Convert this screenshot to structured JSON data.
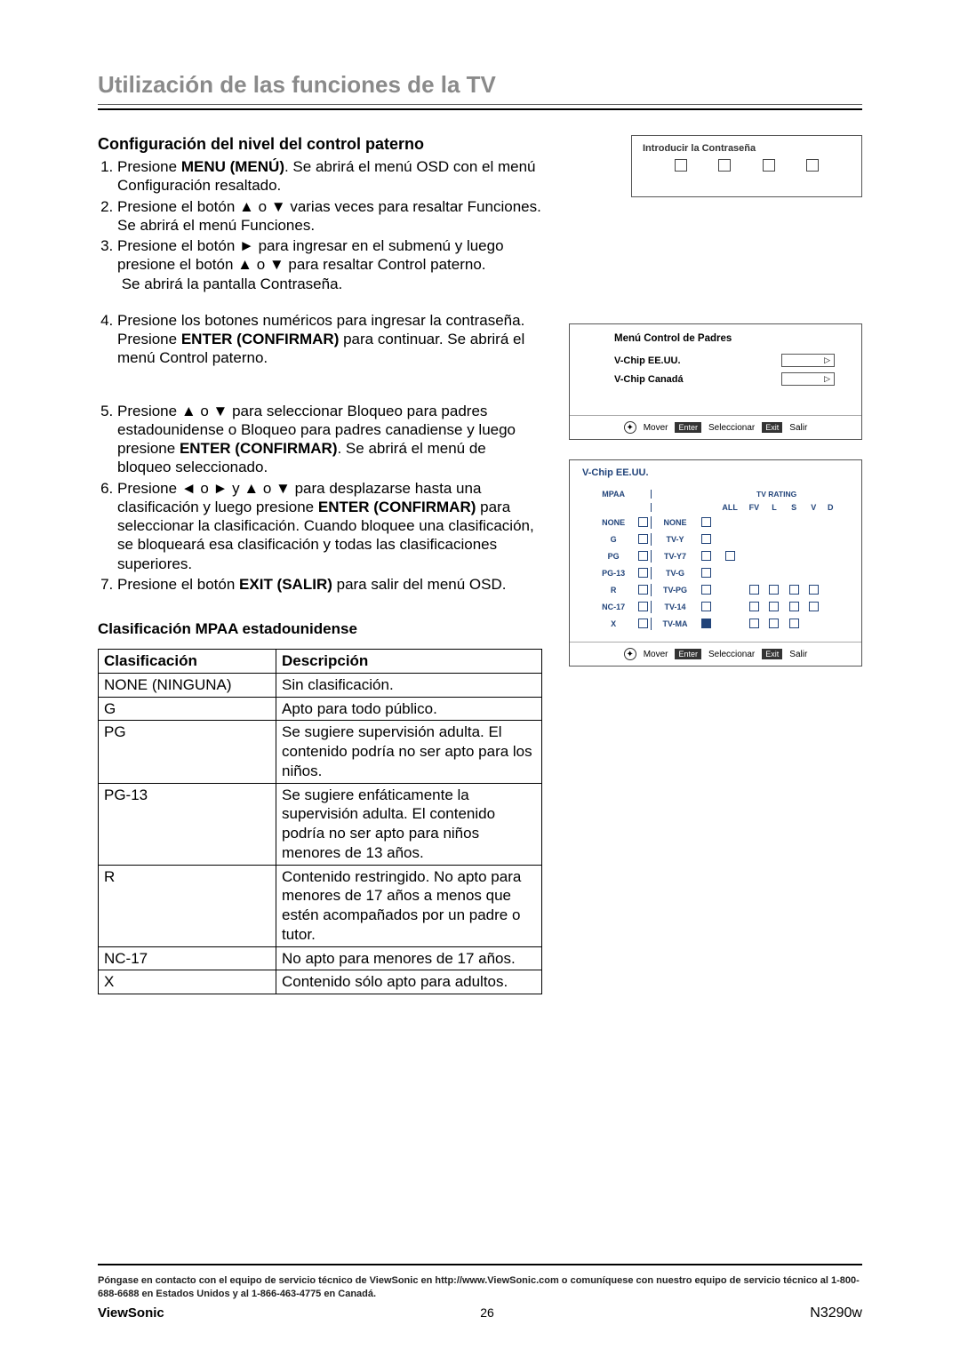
{
  "page_title": "Utilización de las funciones de la TV",
  "section1_heading": "Configuración del nivel del control paterno",
  "steps_group1": [
    "Presione <b>MENU (MENÚ)</b>. Se abrirá el menú OSD con el menú Configuración resaltado.",
    "Presione el botón ▲ o ▼ varias veces para resaltar Funciones. Se abrirá el menú Funciones.",
    "Presione el botón ► para ingresar en el submenú y luego presione el botón ▲ o ▼ para resaltar Control paterno.<br>&nbsp;Se abrirá la pantalla Contraseña."
  ],
  "steps_group2": [
    "Presione los botones numéricos para ingresar la contraseña. Presione <b>ENTER (CONFIRMAR)</b> para continuar. Se abrirá el menú Control paterno."
  ],
  "steps_group3": [
    "Presione ▲ o ▼ para seleccionar Bloqueo para padres estadounidense o Bloqueo para padres canadiense y luego presione <b>ENTER (CONFIRMAR)</b>. Se abrirá el menú de bloqueo seleccionado.",
    "Presione ◄ o ► y ▲ o ▼ para desplazarse hasta una clasificación y luego presione <b>ENTER (CONFIRMAR)</b> para seleccionar la clasificación. Cuando bloquee una clasificación, se bloqueará esa clasificación y todas las clasificaciones superiores.",
    "Presione el botón <b>EXIT (SALIR)</b> para salir del menú OSD."
  ],
  "password_panel": {
    "title": "Introducir la Contraseña"
  },
  "parent_panel": {
    "title": "Menú Control de Padres",
    "row1": "V-Chip EE.UU.",
    "row2": "V-Chip Canadá",
    "foot_mover": "Mover",
    "foot_enter": "Enter",
    "foot_select": "Seleccionar",
    "foot_exit": "Exit",
    "foot_salir": "Salir"
  },
  "vchip_panel": {
    "title": "V-Chip EE.UU.",
    "col_mpaa": "MPAA",
    "col_tvrating": "TV RATING",
    "tv_cols": [
      "ALL",
      "FV",
      "L",
      "S",
      "V",
      "D"
    ],
    "mpaa_rows": [
      "NONE",
      "G",
      "PG",
      "PG-13",
      "R",
      "NC-17",
      "X"
    ],
    "tv_rows": [
      "NONE",
      "TV-Y",
      "TV-Y7",
      "TV-G",
      "TV-PG",
      "TV-14",
      "TV-MA"
    ],
    "grid": [
      [
        1,
        0,
        0,
        0,
        0,
        0
      ],
      [
        1,
        0,
        0,
        0,
        0,
        0
      ],
      [
        1,
        1,
        0,
        0,
        0,
        0
      ],
      [
        1,
        0,
        0,
        0,
        0,
        0
      ],
      [
        1,
        0,
        1,
        1,
        1,
        1
      ],
      [
        1,
        0,
        1,
        1,
        1,
        1
      ],
      [
        2,
        0,
        1,
        1,
        1,
        0
      ]
    ]
  },
  "class_heading": "Clasificación MPAA estadounidense",
  "mpaa_table": {
    "hdr_class": "Clasificación",
    "hdr_desc": "Descripción",
    "rows": [
      [
        "NONE (NINGUNA)",
        "Sin clasificación."
      ],
      [
        "G",
        "Apto para todo público."
      ],
      [
        "PG",
        "Se sugiere supervisión adulta. El contenido podría no ser apto para los niños."
      ],
      [
        "PG-13",
        "Se sugiere enfáticamente la supervisión adulta. El contenido podría no ser apto para niños menores de 13 años."
      ],
      [
        "R",
        "Contenido restringido. No apto para menores de 17 años a menos que estén acompañados por un padre o tutor."
      ],
      [
        "NC-17",
        "No apto para menores de 17 años."
      ],
      [
        "X",
        "Contenido sólo apto para adultos."
      ]
    ]
  },
  "footer": {
    "note": "Póngase en contacto con el equipo de servicio técnico de ViewSonic en http://www.ViewSonic.com o comuníquese con nuestro equipo de servicio técnico al 1-800-688-6688 en Estados Unidos y al 1-866-463-4775 en Canadá.",
    "brand": "ViewSonic",
    "page": "26",
    "model": "N3290w"
  }
}
